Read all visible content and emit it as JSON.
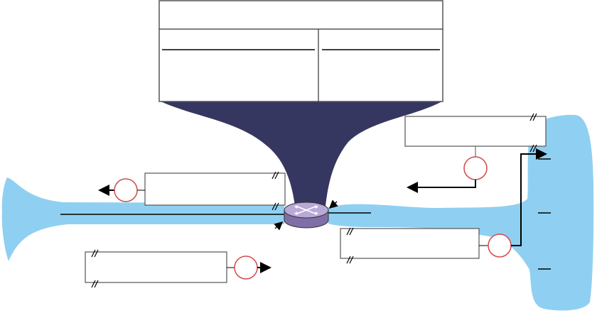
{
  "diagram": {
    "table": {
      "title": "",
      "columns": [
        "",
        ""
      ],
      "rows": [
        [
          "",
          ""
        ]
      ]
    },
    "boxes": [
      {
        "id": "top-right-box",
        "text": ""
      },
      {
        "id": "left-box",
        "text": ""
      },
      {
        "id": "center-bottom-box",
        "text": ""
      },
      {
        "id": "bottom-left-box",
        "text": ""
      }
    ],
    "circles": [
      {
        "id": "circle-left",
        "label": ""
      },
      {
        "id": "circle-top-right",
        "label": ""
      },
      {
        "id": "circle-bottom-right",
        "label": ""
      },
      {
        "id": "circle-bottom-left",
        "label": ""
      }
    ],
    "colors": {
      "funnel": "#363760",
      "cloud": "#8fd0f2",
      "router_fill": "#9a88bb",
      "router_top": "#b9a9d6",
      "circle_stroke": "#d24a4a",
      "line": "#000000",
      "box_stroke": "#555555"
    }
  }
}
